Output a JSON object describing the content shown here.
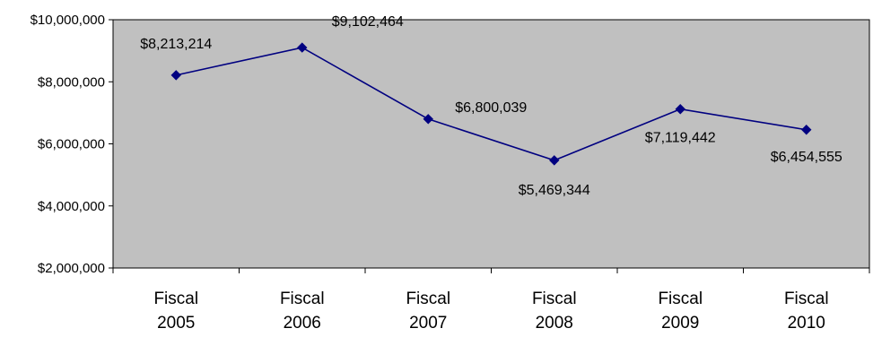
{
  "chart_data": {
    "type": "line",
    "categories": [
      [
        "Fiscal",
        "2005"
      ],
      [
        "Fiscal",
        "2006"
      ],
      [
        "Fiscal",
        "2007"
      ],
      [
        "Fiscal",
        "2008"
      ],
      [
        "Fiscal",
        "2009"
      ],
      [
        "Fiscal",
        "2010"
      ]
    ],
    "series": [
      {
        "values": [
          8213214,
          9102464,
          6800039,
          5469344,
          7119442,
          6454555
        ],
        "labels": [
          "$8,213,214",
          "$9,102,464",
          "$6,800,039",
          "$5,469,344",
          "$7,119,442",
          "$6,454,555"
        ]
      }
    ],
    "yticks": [
      2000000,
      4000000,
      6000000,
      8000000,
      10000000
    ],
    "ytick_labels": [
      "$2,000,000",
      "$4,000,000",
      "$6,000,000",
      "$8,000,000",
      "$10,000,000"
    ],
    "ylim": [
      2000000,
      10000000
    ],
    "title": "",
    "xlabel": "",
    "ylabel": "",
    "legend": "none",
    "grid": false,
    "colors": {
      "plot_background": "#c0c0c0",
      "line": "#000080",
      "marker": "#000080",
      "axis": "#000000"
    },
    "marker": "diamond"
  }
}
